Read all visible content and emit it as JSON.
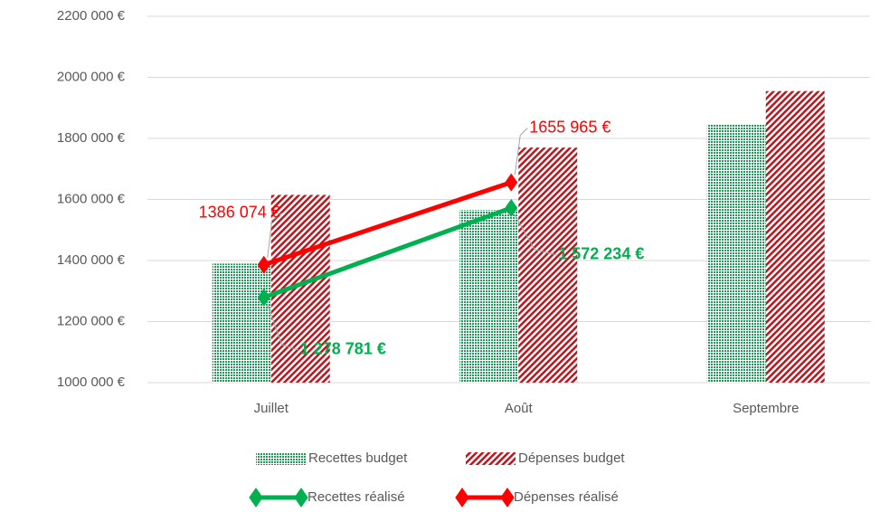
{
  "chart_data": {
    "type": "bar",
    "categories": [
      "Juillet",
      "Août",
      "Septembre"
    ],
    "ylim": [
      1000000,
      2200000
    ],
    "yticks": [
      {
        "value": 1000000,
        "label": "1000 000 €"
      },
      {
        "value": 1200000,
        "label": "1200 000 €"
      },
      {
        "value": 1400000,
        "label": "1400 000 €"
      },
      {
        "value": 1600000,
        "label": "1600 000 €"
      },
      {
        "value": 1800000,
        "label": "1800 000 €"
      },
      {
        "value": 2000000,
        "label": "2000 000 €"
      },
      {
        "value": 2200000,
        "label": "2200 000 €"
      }
    ],
    "grid": true,
    "legend": "bottom",
    "series": [
      {
        "name": "Recettes budget",
        "type": "bar",
        "color": "#1f9c5a",
        "values": [
          1390000,
          1565000,
          1845000
        ]
      },
      {
        "name": "Dépenses budget",
        "type": "bar",
        "color": "#c0141c",
        "values": [
          1615000,
          1770000,
          1955000
        ]
      },
      {
        "name": "Recettes réalisé",
        "type": "line",
        "color": "#00b050",
        "values": [
          1278781,
          1572234,
          null
        ],
        "value_labels": [
          "1 278 781 €",
          "1 572 234 €",
          null
        ]
      },
      {
        "name": "Dépenses réalisé",
        "type": "line",
        "color": "#ff0000",
        "values": [
          1386074,
          1655965,
          null
        ],
        "value_labels": [
          "1386 074 €",
          "1655 965 €",
          null
        ]
      }
    ]
  }
}
